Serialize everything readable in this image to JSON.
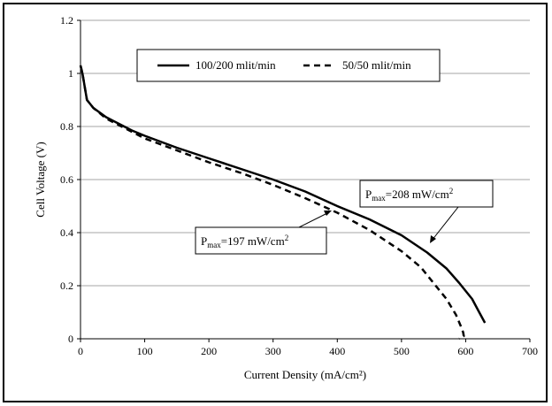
{
  "chart_data": {
    "type": "line",
    "xlabel": "Current Density (mA/cm²)",
    "ylabel": "Cell Voltage (V)",
    "xlim": [
      0,
      700
    ],
    "ylim": [
      0,
      1.2
    ],
    "xticks": [
      "0",
      "100",
      "200",
      "300",
      "400",
      "500",
      "600",
      "700"
    ],
    "yticks": [
      "0",
      "0.2",
      "0.4",
      "0.6",
      "0.8",
      "1",
      "1.2"
    ],
    "grid": "horizontal",
    "legend_position": "top-center",
    "series": [
      {
        "name": "100/200 mlit/min",
        "style": "solid",
        "color": "#000000",
        "x": [
          0,
          3,
          10,
          20,
          40,
          60,
          80,
          100,
          150,
          200,
          250,
          300,
          350,
          400,
          450,
          500,
          540,
          570,
          590,
          610,
          620,
          630
        ],
        "y": [
          1.03,
          1.0,
          0.9,
          0.87,
          0.835,
          0.81,
          0.785,
          0.765,
          0.72,
          0.68,
          0.64,
          0.6,
          0.555,
          0.5,
          0.45,
          0.39,
          0.325,
          0.265,
          0.21,
          0.15,
          0.105,
          0.06
        ]
      },
      {
        "name": "50/50 mlit/min",
        "style": "dashed",
        "color": "#000000",
        "x": [
          0,
          3,
          10,
          20,
          40,
          60,
          80,
          100,
          150,
          200,
          250,
          300,
          350,
          400,
          450,
          500,
          530,
          550,
          570,
          585,
          592,
          596,
          597,
          594,
          590
        ],
        "y": [
          1.03,
          1.0,
          0.9,
          0.87,
          0.83,
          0.805,
          0.78,
          0.755,
          0.71,
          0.665,
          0.625,
          0.58,
          0.53,
          0.475,
          0.41,
          0.33,
          0.27,
          0.21,
          0.15,
          0.09,
          0.05,
          0.025,
          0.01,
          0.005,
          0.0
        ]
      }
    ],
    "annotations": [
      {
        "label_main": "P",
        "label_sub": "max",
        "label_rest": "=208 mW/cm",
        "label_sup": "2",
        "target_series": "100/200 mlit/min"
      },
      {
        "label_main": "P",
        "label_sub": "max",
        "label_rest": "=197 mW/cm",
        "label_sup": "2",
        "target_series": "50/50 mlit/min"
      }
    ]
  }
}
